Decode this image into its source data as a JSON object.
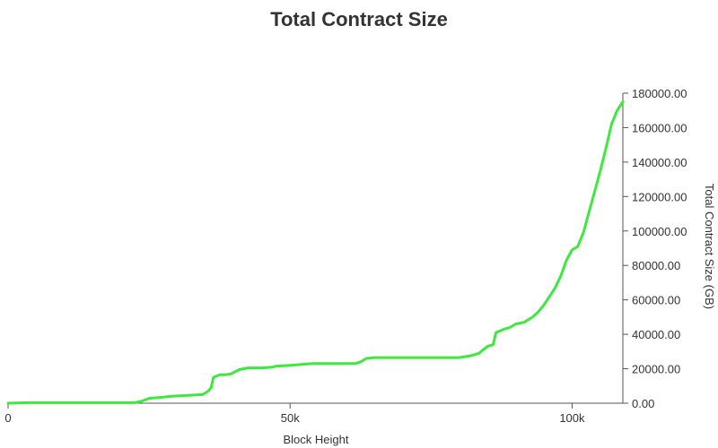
{
  "chart_data": {
    "type": "line",
    "title": "Total Contract Size",
    "xlabel": "Block Height",
    "ylabel": "Total Contract Size (GB)",
    "xlim": [
      0,
      109000
    ],
    "ylim": [
      0,
      180000
    ],
    "x_ticks": [
      {
        "value": 0,
        "label": "0"
      },
      {
        "value": 50000,
        "label": "50k"
      },
      {
        "value": 100000,
        "label": "100k"
      }
    ],
    "y_ticks": [
      {
        "value": 0,
        "label": "0.00"
      },
      {
        "value": 20000,
        "label": "20000.00"
      },
      {
        "value": 40000,
        "label": "40000.00"
      },
      {
        "value": 60000,
        "label": "60000.00"
      },
      {
        "value": 80000,
        "label": "80000.00"
      },
      {
        "value": 100000,
        "label": "100000.00"
      },
      {
        "value": 120000,
        "label": "120000.00"
      },
      {
        "value": 140000,
        "label": "140000.00"
      },
      {
        "value": 160000,
        "label": "160000.00"
      },
      {
        "value": 180000,
        "label": "180000.00"
      }
    ],
    "grid": false,
    "line_color": "#3ee83e",
    "series": [
      {
        "x": [
          0,
          3700,
          22500,
          23500,
          25000,
          27500,
          29000,
          31500,
          34500,
          35500,
          36000,
          36400,
          37500,
          38500,
          39500,
          41000,
          42500,
          45000,
          47000,
          47500,
          50000,
          54000,
          56000,
          60000,
          61500,
          62500,
          63500,
          65000,
          70000,
          75000,
          79000,
          80000,
          81000,
          82000,
          83500,
          85000,
          86000,
          86500,
          88000,
          89000,
          90000,
          91500,
          92000,
          93000,
          94000,
          95000,
          96000,
          97000,
          98000,
          99000,
          100000,
          101000,
          102000,
          103000,
          104000,
          105000,
          106000,
          107000,
          108000,
          109000
        ],
        "y": [
          0,
          300,
          300,
          1000,
          2800,
          3500,
          4000,
          4500,
          5000,
          7000,
          9000,
          15000,
          16500,
          16500,
          17000,
          19500,
          20500,
          20500,
          21000,
          21500,
          22000,
          23000,
          23000,
          23000,
          23000,
          24000,
          26000,
          26500,
          26500,
          26500,
          26500,
          26500,
          27000,
          27500,
          29000,
          33000,
          34000,
          41000,
          43000,
          44000,
          46000,
          47000,
          48000,
          50000,
          53000,
          57000,
          62000,
          67000,
          74000,
          83000,
          89000,
          91000,
          99000,
          111000,
          123000,
          135000,
          148000,
          162000,
          170000,
          175000
        ]
      }
    ]
  }
}
